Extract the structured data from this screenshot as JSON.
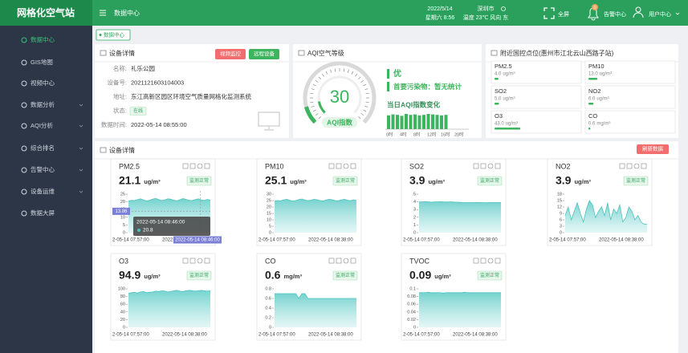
{
  "header": {
    "brand": "网格化空气站",
    "page": "数据中心",
    "date": "2022/5/14",
    "weekday_time": "星期六 8:56",
    "city": "深圳市",
    "weather": "温度 23℃ 风向 东",
    "fullscreen": "全屏",
    "alarm": "告警中心",
    "alarm_count": "0",
    "user": "用户中心"
  },
  "sidebar": {
    "items": [
      {
        "label": "数据中心",
        "active": true,
        "expand": false
      },
      {
        "label": "GIS地图",
        "active": false,
        "expand": false
      },
      {
        "label": "视频中心",
        "active": false,
        "expand": false
      },
      {
        "label": "数据分析",
        "active": false,
        "expand": true
      },
      {
        "label": "AQI分析",
        "active": false,
        "expand": true
      },
      {
        "label": "综合排名",
        "active": false,
        "expand": true
      },
      {
        "label": "告警中心",
        "active": false,
        "expand": true
      },
      {
        "label": "设备运维",
        "active": false,
        "expand": true
      },
      {
        "label": "数据大屏",
        "active": false,
        "expand": false
      }
    ]
  },
  "tab": "数据中心",
  "device": {
    "title": "设备详情",
    "buttons": [
      "视频监控",
      "远程设备"
    ],
    "fields": [
      {
        "label": "名称:",
        "value": "礼乐公园",
        "badge": false
      },
      {
        "label": "设备号:",
        "value": "2021121603104003",
        "badge": false
      },
      {
        "label": "地址:",
        "value": "东江高新区园区环境空气质量网格化监测系统",
        "badge": false
      },
      {
        "label": "状态:",
        "value": "在线",
        "badge": true
      },
      {
        "label": "数据时间:",
        "value": "2022-05-14 08:55:00",
        "badge": false
      }
    ]
  },
  "aqi": {
    "title": "AQI空气等级",
    "value": 30,
    "gauge_label": "AQI指数",
    "level": "优",
    "primary_pollutant": "首要污染物：暂无统计",
    "trend_title": "当日AQI指数变化",
    "hourly": [
      29,
      31,
      30,
      28,
      32,
      30,
      31,
      29,
      30,
      32,
      31,
      30,
      29,
      30
    ],
    "hour_labels": [
      "0时",
      "4时",
      "8时",
      "12时",
      "16时",
      "20时"
    ]
  },
  "nearby": {
    "title": "附近国控点位(惠州市江北云山西路子站)",
    "stations": [
      {
        "name": "PM2.5",
        "value": "4.0",
        "unit": "ug/m³"
      },
      {
        "name": "PM10",
        "value": "13.0",
        "unit": "ug/m³"
      },
      {
        "name": "SO2",
        "value": "5.0",
        "unit": "ug/m³"
      },
      {
        "name": "NO2",
        "value": "6.0",
        "unit": "ug/m³"
      },
      {
        "name": "O3",
        "value": "43.0",
        "unit": "ug/m³"
      },
      {
        "name": "CO",
        "value": "0.6",
        "unit": "mg/m³"
      }
    ]
  },
  "monitor": {
    "title": "设备详情",
    "refresh": "刷新数据",
    "status": "监测正常",
    "x_start": "2-05-14 07:57:00",
    "x_end": "2022-05-14 08:38:00",
    "cards": [
      {
        "name": "PM2.5",
        "value": "21.1",
        "unit": "ug/m³",
        "ylim": [
          0,
          25
        ],
        "yticks": [
          0,
          5,
          10,
          15,
          20,
          25
        ],
        "series": [
          20.5,
          21,
          20.8,
          21.5,
          22,
          21.2,
          20.6,
          21,
          21.8,
          22.2,
          21.5,
          20.9,
          21.3,
          22,
          21.7,
          21,
          20.7,
          21.4,
          22.1,
          21.6,
          21,
          20.8,
          21.5,
          22,
          21.3,
          20.9,
          21.6,
          21.1
        ],
        "tooltip": {
          "y_label": 13.86,
          "time": "2022-05-14 08:46:00",
          "value": 20.8,
          "x_label": "2022-05-14 08:46:00"
        }
      },
      {
        "name": "PM10",
        "value": "25.1",
        "unit": "ug/m³",
        "ylim": [
          0,
          30
        ],
        "yticks": [
          0,
          5,
          10,
          15,
          20,
          25,
          30
        ],
        "series": [
          24.5,
          25,
          24.8,
          25.5,
          26,
          25.2,
          24.6,
          25,
          25.8,
          26.2,
          25.5,
          24.9,
          25.3,
          26,
          25.7,
          25,
          24.7,
          25.4,
          26.1,
          25.6,
          25,
          24.8,
          25.5,
          26,
          25.3,
          24.9,
          25.6,
          25.1
        ]
      },
      {
        "name": "SO2",
        "value": "3.9",
        "unit": "ug/m³",
        "ylim": [
          0,
          5
        ],
        "yticks": [
          0,
          1,
          2,
          3,
          4,
          5
        ],
        "series": [
          4,
          4,
          4.05,
          4,
          3.95,
          4,
          4,
          4.02,
          4,
          3.98,
          4,
          4,
          3.95,
          3.95,
          3.92,
          3.9,
          3.9,
          3.9,
          3.9,
          3.92,
          3.9,
          3.9,
          3.88,
          3.9,
          3.9,
          3.9,
          3.9,
          3.9
        ]
      },
      {
        "name": "NO2",
        "value": "3.9",
        "unit": "ug/m³",
        "ylim": [
          0,
          18
        ],
        "yticks": [
          0,
          3,
          6,
          9,
          12,
          15,
          18
        ],
        "series": [
          8,
          12,
          6,
          10,
          14,
          9,
          5,
          11,
          15,
          13,
          7,
          10,
          12,
          8,
          14,
          6,
          11,
          9,
          13,
          5,
          7,
          12,
          10,
          6,
          8,
          5,
          4,
          3.9
        ]
      },
      {
        "name": "O3",
        "value": "94.9",
        "unit": "ug/m³",
        "ylim": [
          0,
          100
        ],
        "yticks": [
          0,
          20,
          40,
          60,
          80,
          100
        ],
        "series": [
          88,
          90,
          91,
          89,
          92,
          93,
          90,
          91,
          92,
          94,
          93,
          95,
          94,
          92,
          93,
          95,
          96,
          94,
          93,
          95,
          96,
          95,
          94,
          95,
          96,
          95,
          94,
          94.9
        ]
      },
      {
        "name": "CO",
        "value": "0.6",
        "unit": "mg/m³",
        "ylim": [
          0,
          0.8
        ],
        "yticks": [
          0,
          0.2,
          0.4,
          0.6,
          0.8
        ],
        "series": [
          0.7,
          0.7,
          0.7,
          0.7,
          0.7,
          0.7,
          0.7,
          0.7,
          0.6,
          0.7,
          0.7,
          0.6,
          0.6,
          0.6,
          0.6,
          0.6,
          0.6,
          0.6,
          0.6,
          0.6,
          0.6,
          0.6,
          0.6,
          0.6,
          0.6,
          0.6,
          0.6,
          0.6
        ]
      },
      {
        "name": "TVOC",
        "value": "0.09",
        "unit": "ug/m³",
        "ylim": [
          0,
          0.1
        ],
        "yticks": [
          0,
          0.02,
          0.04,
          0.06,
          0.08,
          0.1
        ],
        "series": [
          0.09,
          0.09,
          0.09,
          0.091,
          0.09,
          0.09,
          0.09,
          0.09,
          0.089,
          0.09,
          0.09,
          0.09,
          0.09,
          0.09,
          0.09,
          0.091,
          0.09,
          0.09,
          0.09,
          0.09,
          0.09,
          0.09,
          0.09,
          0.09,
          0.09,
          0.09,
          0.09,
          0.09
        ]
      }
    ]
  }
}
